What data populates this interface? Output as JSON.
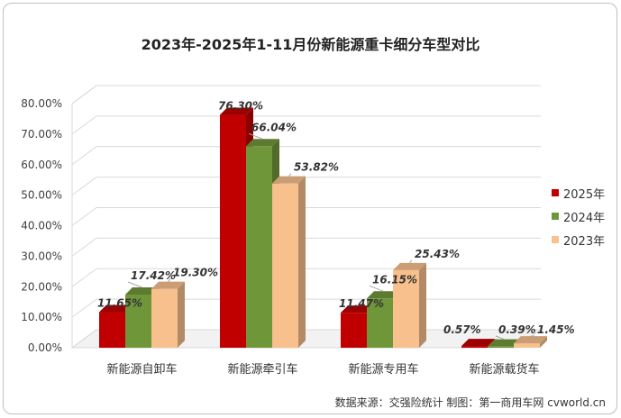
{
  "chart_data": {
    "type": "bar",
    "title": "2023年-2025年1-11月份新能源重卡细分车型对比",
    "categories": [
      "新能源自卸车",
      "新能源牵引车",
      "新能源专用车",
      "新能源载货车"
    ],
    "series": [
      {
        "name": "2025年",
        "color": "#c00000",
        "values": [
          11.65,
          76.3,
          11.47,
          0.57
        ]
      },
      {
        "name": "2024年",
        "color": "#70963a",
        "values": [
          17.42,
          66.04,
          16.15,
          0.39
        ]
      },
      {
        "name": "2023年",
        "color": "#f7c08d",
        "values": [
          19.3,
          53.82,
          25.43,
          1.45
        ]
      }
    ],
    "data_labels": [
      [
        "11.65%",
        "17.42%",
        "19.30%"
      ],
      [
        "76.30%",
        "66.04%",
        "53.82%"
      ],
      [
        "11.47%",
        "16.15%",
        "25.43%"
      ],
      [
        "0.57%",
        "0.39%",
        "1.45%"
      ]
    ],
    "yticks": [
      "0.00%",
      "10.00%",
      "20.00%",
      "30.00%",
      "40.00%",
      "50.00%",
      "60.00%",
      "70.00%",
      "80.00%"
    ],
    "ylim": [
      0,
      80
    ],
    "grid": true,
    "legend_position": "right",
    "style": "3d-clustered-column"
  },
  "source_note": "数据来源：交强险统计  制图：第一商用车网 cvworld.cn"
}
